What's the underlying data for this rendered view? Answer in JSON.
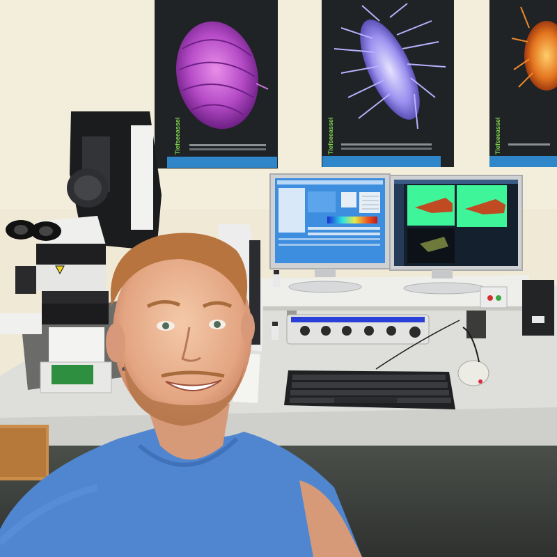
{
  "posters": [
    {
      "title": "Tiefseeassel"
    },
    {
      "title": "Tiefseeassel"
    },
    {
      "title": "Tiefseeassel"
    }
  ],
  "colors": {
    "wall": "#efe9d6",
    "desk": "#dcdcd8",
    "shirt": "#4f86cf",
    "poster_bg": "#1f2326",
    "poster_band": "#2f86c8",
    "screen_blue": "#3e8ee0",
    "confocal_green": "#3ef59a"
  },
  "icons": [
    "microscope-icon",
    "monitor-icon",
    "keyboard-icon",
    "mouse-icon",
    "controller-icon",
    "speaker-icon"
  ]
}
